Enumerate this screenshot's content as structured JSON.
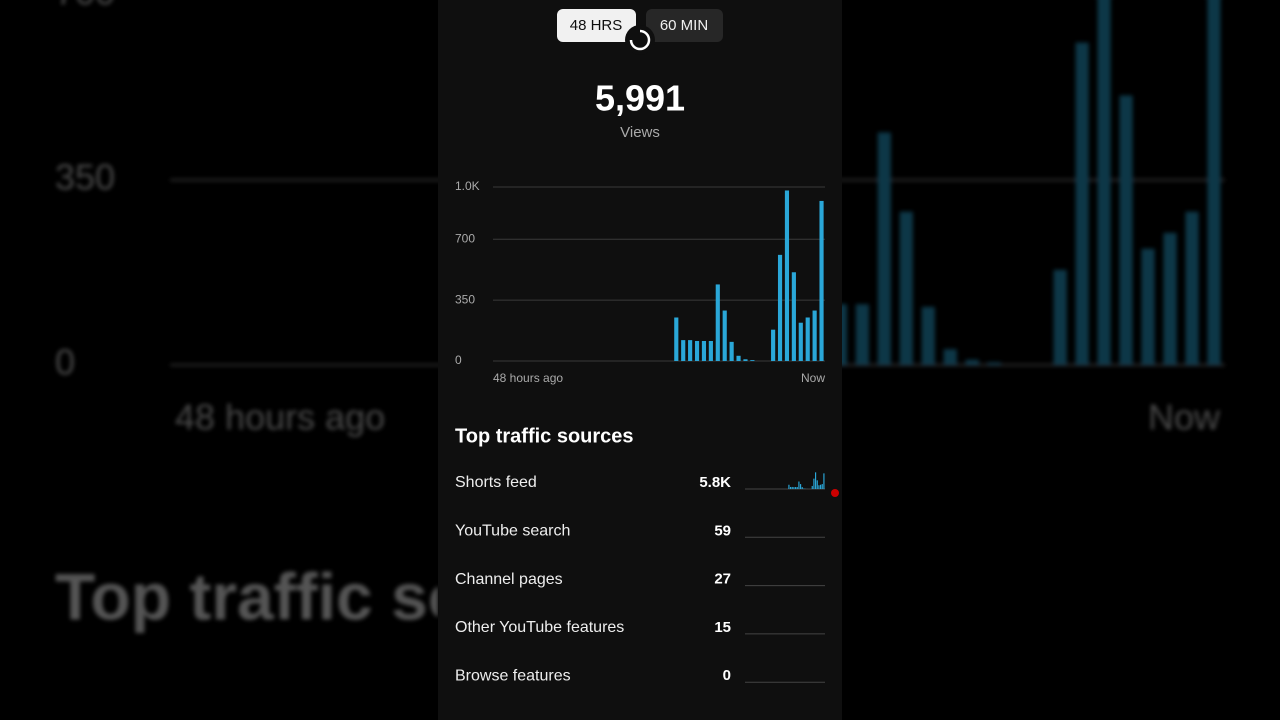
{
  "toggle": {
    "options": [
      "48 HRS",
      "60 MIN"
    ]
  },
  "summary": {
    "total": "5,991",
    "metric": "Views"
  },
  "chart_data": {
    "type": "bar",
    "color": "#2aa7d8",
    "categories": [
      null,
      null,
      null,
      null,
      null,
      null,
      null,
      null,
      null,
      null,
      null,
      null,
      null,
      null,
      null,
      null,
      null,
      null,
      null,
      null,
      null,
      null,
      null,
      null,
      null,
      null,
      null,
      null,
      null,
      null,
      null,
      null,
      null,
      null,
      null,
      null,
      null,
      null,
      null,
      null,
      null,
      null,
      null,
      null,
      null,
      null,
      null,
      null
    ],
    "values": [
      0,
      0,
      0,
      0,
      0,
      0,
      0,
      0,
      0,
      0,
      0,
      0,
      0,
      0,
      0,
      0,
      0,
      0,
      0,
      0,
      0,
      0,
      0,
      0,
      0,
      0,
      250,
      120,
      120,
      115,
      115,
      115,
      440,
      290,
      110,
      30,
      10,
      5,
      0,
      0,
      180,
      610,
      980,
      510,
      220,
      250,
      290,
      920
    ],
    "x_labels": [
      "48 hours ago",
      "Now"
    ],
    "ylim": [
      0,
      1000
    ],
    "yticks": [
      0,
      350,
      700,
      {
        "value": 1000,
        "label": "1.0K"
      }
    ],
    "grid": true
  },
  "traffic_sources": {
    "title": "Top traffic sources",
    "rows": [
      {
        "name": "Shorts feed",
        "views": "5.8K"
      },
      {
        "name": "YouTube search",
        "views": "59"
      },
      {
        "name": "Channel pages",
        "views": "27"
      },
      {
        "name": "Other YouTube features",
        "views": "15"
      },
      {
        "name": "Browse features",
        "views": "0"
      }
    ]
  }
}
